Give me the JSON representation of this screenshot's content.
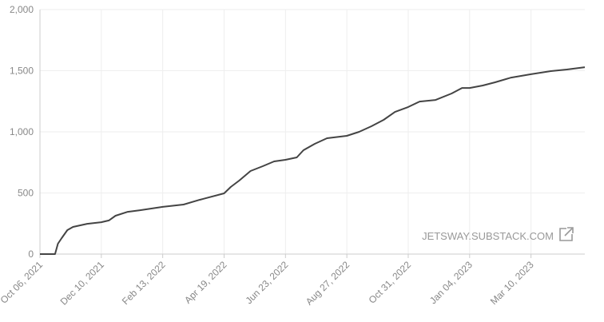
{
  "chart_data": {
    "type": "line",
    "color": "#444444",
    "grid": true,
    "watermark": "JETSWAY.SUBSTACK.COM",
    "x": [
      "2021-10-06",
      "2021-10-22",
      "2021-10-25",
      "2021-10-29",
      "2021-11-04",
      "2021-11-10",
      "2021-11-25",
      "2021-12-10",
      "2021-12-18",
      "2021-12-25",
      "2022-01-07",
      "2022-01-20",
      "2022-02-13",
      "2022-03-07",
      "2022-03-24",
      "2022-04-19",
      "2022-04-26",
      "2022-05-05",
      "2022-05-17",
      "2022-05-30",
      "2022-06-11",
      "2022-06-23",
      "2022-07-05",
      "2022-07-12",
      "2022-07-24",
      "2022-08-06",
      "2022-08-27",
      "2022-09-09",
      "2022-09-22",
      "2022-10-05",
      "2022-10-17",
      "2022-10-31",
      "2022-11-12",
      "2022-11-29",
      "2022-12-16",
      "2022-12-27",
      "2023-01-04",
      "2023-01-18",
      "2023-01-31",
      "2023-02-17",
      "2023-03-10",
      "2023-03-31",
      "2023-04-17",
      "2023-05-06"
    ],
    "values": [
      0,
      0,
      85,
      131,
      196,
      222,
      248,
      261,
      275,
      314,
      346,
      359,
      386,
      405,
      444,
      497,
      549,
      601,
      680,
      719,
      758,
      771,
      791,
      850,
      902,
      948,
      967,
      1000,
      1046,
      1098,
      1163,
      1203,
      1248,
      1261,
      1314,
      1359,
      1359,
      1379,
      1405,
      1444,
      1471,
      1497,
      1510,
      1529
    ],
    "xlim": [
      "2021-10-06",
      "2023-05-06"
    ],
    "xticks": [
      {
        "value": "2021-10-06",
        "label": "Oct 06, 2021"
      },
      {
        "value": "2021-12-10",
        "label": "Dec 10, 2021"
      },
      {
        "value": "2022-02-13",
        "label": "Feb 13, 2022"
      },
      {
        "value": "2022-04-19",
        "label": "Apr 19, 2022"
      },
      {
        "value": "2022-06-23",
        "label": "Jun 23, 2022"
      },
      {
        "value": "2022-08-27",
        "label": "Aug 27, 2022"
      },
      {
        "value": "2022-10-31",
        "label": "Oct 31, 2022"
      },
      {
        "value": "2023-01-04",
        "label": "Jan 04, 2023"
      },
      {
        "value": "2023-03-10",
        "label": "Mar 10, 2023"
      }
    ],
    "ylim": [
      0,
      2000
    ],
    "yticks": [
      0,
      500,
      {
        "value": 1000,
        "label": "1,000"
      },
      {
        "value": 1500,
        "label": "1,500"
      },
      {
        "value": 2000,
        "label": "2,000"
      }
    ]
  }
}
